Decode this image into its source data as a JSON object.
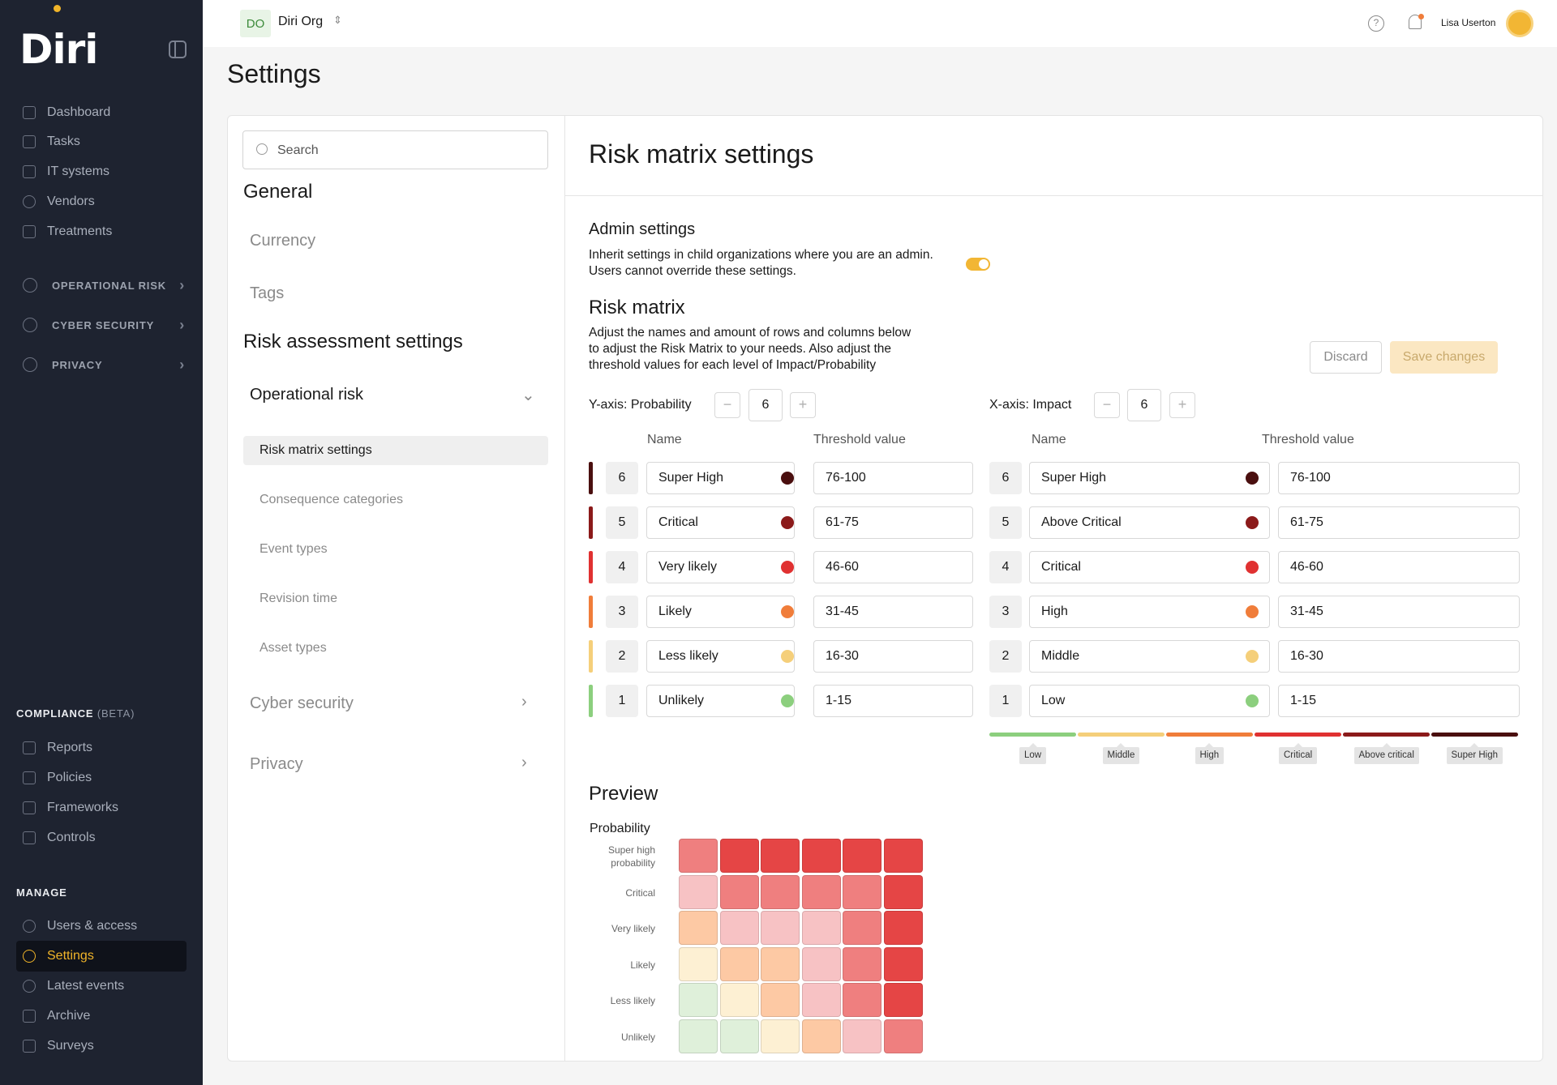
{
  "sidebar": {
    "logo": "Diri",
    "nav": [
      "Dashboard",
      "Tasks",
      "IT systems",
      "Vendors",
      "Treatments"
    ],
    "groups": [
      "OPERATIONAL RISK",
      "CYBER SECURITY",
      "PRIVACY"
    ],
    "compliance_title": "COMPLIANCE",
    "compliance_beta": "(BETA)",
    "compliance": [
      "Reports",
      "Policies",
      "Frameworks",
      "Controls"
    ],
    "manage_title": "MANAGE",
    "manage": [
      "Users & access",
      "Settings",
      "Latest events",
      "Archive",
      "Surveys"
    ]
  },
  "topbar": {
    "org_initials": "DO",
    "org_name": "Diri Org",
    "user_name": "Lisa Userton"
  },
  "page": {
    "title": "Settings"
  },
  "settings_nav": {
    "search_placeholder": "Search",
    "general": "General",
    "currency": "Currency",
    "tags": "Tags",
    "risk_assessment": "Risk assessment settings",
    "operational_risk": "Operational risk",
    "items": [
      "Risk matrix settings",
      "Consequence categories",
      "Event types",
      "Revision time",
      "Asset types"
    ],
    "cyber_security": "Cyber security",
    "privacy": "Privacy"
  },
  "content": {
    "title": "Risk matrix settings",
    "admin_title": "Admin settings",
    "admin_text_1": "Inherit settings in child organizations where you are an admin.",
    "admin_text_2": "Users cannot override these settings.",
    "admin_inherit_enabled": true,
    "matrix_title": "Risk matrix",
    "matrix_text_1": "Adjust the names and amount of rows and columns below",
    "matrix_text_2": "to adjust the Risk Matrix to your needs. Also adjust the",
    "matrix_text_3": "threshold values for each level of Impact/Probability",
    "discard": "Discard",
    "save": "Save changes",
    "y_axis_label": "Y-axis: Probability",
    "y_count": "6",
    "x_axis_label": "X-axis: Impact",
    "x_count": "6",
    "col_name": "Name",
    "col_threshold": "Threshold value",
    "probability_rows": [
      {
        "n": "6",
        "name": "Super High",
        "threshold": "76-100",
        "color": "#4a0f0f"
      },
      {
        "n": "5",
        "name": "Critical",
        "threshold": "61-75",
        "color": "#8b1a1a"
      },
      {
        "n": "4",
        "name": "Very likely",
        "threshold": "46-60",
        "color": "#e03131"
      },
      {
        "n": "3",
        "name": "Likely",
        "threshold": "31-45",
        "color": "#f07d3a"
      },
      {
        "n": "2",
        "name": "Less likely",
        "threshold": "16-30",
        "color": "#f5cf7a"
      },
      {
        "n": "1",
        "name": "Unlikely",
        "threshold": "1-15",
        "color": "#8ccf7e"
      }
    ],
    "impact_rows": [
      {
        "n": "6",
        "name": "Super High",
        "threshold": "76-100",
        "color": "#4a0f0f"
      },
      {
        "n": "5",
        "name": "Above Critical",
        "threshold": "61-75",
        "color": "#8b1a1a"
      },
      {
        "n": "4",
        "name": "Critical",
        "threshold": "46-60",
        "color": "#e03131"
      },
      {
        "n": "3",
        "name": "High",
        "threshold": "31-45",
        "color": "#f07d3a"
      },
      {
        "n": "2",
        "name": "Middle",
        "threshold": "16-30",
        "color": "#f5cf7a"
      },
      {
        "n": "1",
        "name": "Low",
        "threshold": "1-15",
        "color": "#8ccf7e"
      }
    ],
    "legend": [
      {
        "label": "Low",
        "color": "#8ccf7e"
      },
      {
        "label": "Middle",
        "color": "#f5cf7a"
      },
      {
        "label": "High",
        "color": "#f07d3a"
      },
      {
        "label": "Critical",
        "color": "#e03131"
      },
      {
        "label": "Above critical",
        "color": "#8b1a1a"
      },
      {
        "label": "Super High",
        "color": "#4a0f0f"
      }
    ],
    "preview_title": "Preview",
    "preview_axis": "Probability",
    "preview_rows": [
      "Super high probability",
      "Critical",
      "Very likely",
      "Likely",
      "Less likely",
      "Unlikely"
    ],
    "preview_colors": [
      [
        "#ef7f7f",
        "#e54545",
        "#e54545",
        "#e54545",
        "#e54545",
        "#e54545"
      ],
      [
        "#f7c2c4",
        "#ef7f7f",
        "#ef7f7f",
        "#ef7f7f",
        "#ef7f7f",
        "#e54545"
      ],
      [
        "#fdc9a4",
        "#f7c2c4",
        "#f7c2c4",
        "#f7c2c4",
        "#ef7f7f",
        "#e54545"
      ],
      [
        "#fdf0d3",
        "#fdc9a4",
        "#fdc9a4",
        "#f7c2c4",
        "#ef7f7f",
        "#e54545"
      ],
      [
        "#dff0da",
        "#fdf0d3",
        "#fdc9a4",
        "#f7c2c4",
        "#ef7f7f",
        "#e54545"
      ],
      [
        "#dff0da",
        "#dff0da",
        "#fdf0d3",
        "#fdc9a4",
        "#f7c2c4",
        "#ef7f7f"
      ]
    ]
  }
}
